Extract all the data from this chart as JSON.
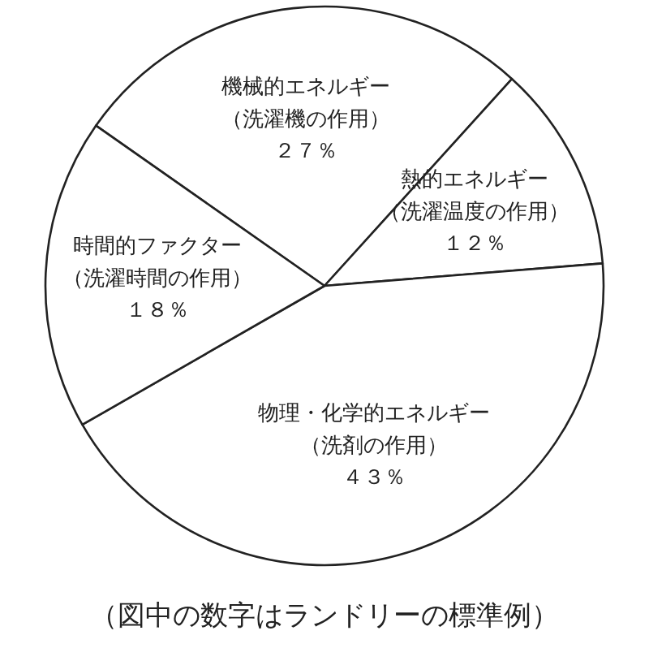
{
  "chart_data": {
    "type": "pie",
    "categories": [
      "機械的エネルギー（洗濯機の作用）",
      "熱的エネルギー（洗濯温度の作用）",
      "物理・化学的エネルギー（洗剤の作用）",
      "時間的ファクター（洗濯時間の作用）"
    ],
    "values": [
      27,
      12,
      43,
      18
    ],
    "value_labels": [
      "２７％",
      "１２％",
      "４３％",
      "１８％"
    ],
    "colors": [
      "#ffffff",
      "#ffffff",
      "#ffffff",
      "#ffffff"
    ],
    "annotations": [
      "（図中の数字はランドリーの標準例）"
    ]
  }
}
